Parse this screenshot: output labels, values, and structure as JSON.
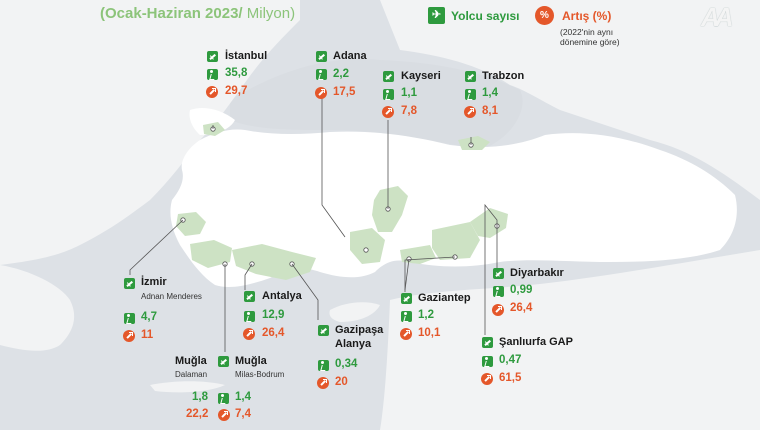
{
  "header": {
    "title_main": "(Ocak-Haziran 2023/",
    "title_unit": " Milyon)"
  },
  "legend": {
    "passenger_label": "Yolcu sayısı",
    "increase_label": "Artış (%)",
    "increase_note_line1": "(2022'nin aynı",
    "increase_note_line2": "dönemine göre)"
  },
  "colors": {
    "passenger": "#2e9a3e",
    "increase": "#e4572a",
    "highlight_region": "#cde2c4",
    "title": "#8cc47a"
  },
  "airports": {
    "istanbul": {
      "name": "İstanbul",
      "passengers": "35,8",
      "increase": "29,7"
    },
    "adana": {
      "name": "Adana",
      "passengers": "2,2",
      "increase": "17,5"
    },
    "kayseri": {
      "name": "Kayseri",
      "passengers": "1,1",
      "increase": "7,8"
    },
    "trabzon": {
      "name": "Trabzon",
      "passengers": "1,4",
      "increase": "8,1"
    },
    "izmir": {
      "name": "İzmir",
      "sub": "Adnan Menderes",
      "passengers": "4,7",
      "increase": "11"
    },
    "antalya": {
      "name": "Antalya",
      "passengers": "12,9",
      "increase": "26,4"
    },
    "gazipasa": {
      "name": "Gazipaşa",
      "name2": "Alanya",
      "passengers": "0,34",
      "increase": "20"
    },
    "gaziantep": {
      "name": "Gaziantep",
      "passengers": "1,2",
      "increase": "10,1"
    },
    "diyarbakir": {
      "name": "Diyarbakır",
      "passengers": "0,99",
      "increase": "26,4"
    },
    "sanliurfa": {
      "name": "Şanlıurfa GAP",
      "passengers": "0,47",
      "increase": "61,5"
    },
    "mugla_dalaman": {
      "name": "Muğla",
      "sub": "Dalaman",
      "passengers": "1,8",
      "increase": "22,2"
    },
    "mugla_bodrum": {
      "name": "Muğla",
      "sub": "Milas-Bodrum",
      "passengers": "1,4",
      "increase": "7,4"
    }
  }
}
